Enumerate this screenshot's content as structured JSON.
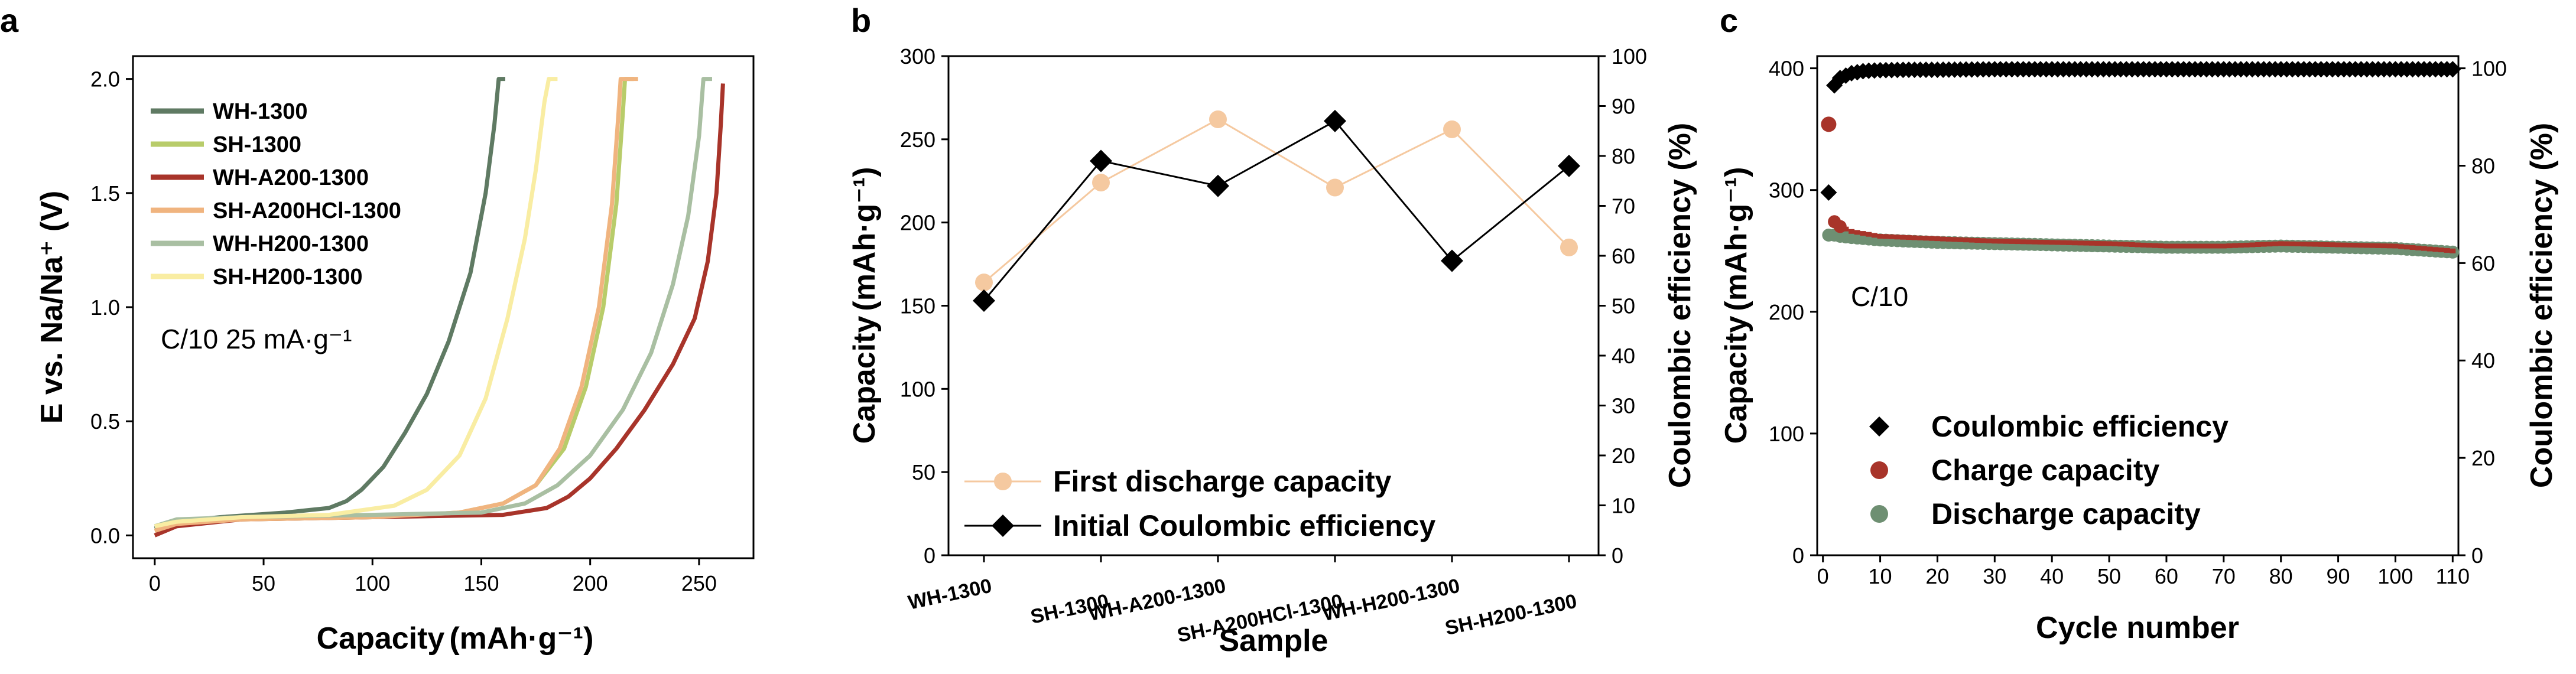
{
  "panel_labels": [
    "a",
    "b",
    "c"
  ],
  "chart_data": [
    {
      "type": "line",
      "title": "",
      "xlabel": "Capacity (mAh·g⁻¹)",
      "xlabel_main": "Capacity",
      "xlabel_unit": "(mAh·g⁻¹)",
      "ylabel": "E vs. Na/Na⁺ (V)",
      "xlim": [
        -10,
        275
      ],
      "ylim": [
        -0.1,
        2.1
      ],
      "xticks": [
        0,
        50,
        100,
        150,
        200,
        250
      ],
      "yticks": [
        "0.0",
        "0.5",
        "1.0",
        "1.5",
        "2.0"
      ],
      "annotation": "C/10 25 mA·g⁻¹",
      "legend_position": "top-left",
      "series": [
        {
          "name": "WH-1300",
          "color": "#5f7a63",
          "x": [
            0,
            10,
            30,
            60,
            80,
            88,
            95,
            105,
            115,
            125,
            135,
            145,
            152,
            156,
            158,
            161
          ],
          "y": [
            0.03,
            0.06,
            0.08,
            0.1,
            0.12,
            0.15,
            0.2,
            0.3,
            0.45,
            0.62,
            0.85,
            1.15,
            1.5,
            1.8,
            2.0,
            2.0
          ]
        },
        {
          "name": "SH-1300",
          "color": "#b8cc6a",
          "x": [
            0,
            10,
            40,
            100,
            140,
            160,
            175,
            188,
            198,
            206,
            212,
            215,
            216,
            220
          ],
          "y": [
            0.02,
            0.05,
            0.07,
            0.08,
            0.1,
            0.14,
            0.22,
            0.38,
            0.65,
            1.0,
            1.45,
            1.85,
            2.0,
            2.0
          ]
        },
        {
          "name": "WH-A200-1300",
          "color": "#a8342a",
          "x": [
            0,
            10,
            40,
            100,
            160,
            180,
            190,
            200,
            212,
            225,
            238,
            248,
            254,
            258,
            260,
            261
          ],
          "y": [
            0.0,
            0.04,
            0.07,
            0.08,
            0.09,
            0.12,
            0.17,
            0.25,
            0.38,
            0.55,
            0.75,
            0.95,
            1.2,
            1.5,
            1.8,
            1.98
          ]
        },
        {
          "name": "SH-A200HCl-1300",
          "color": "#f0b47f",
          "x": [
            0,
            10,
            40,
            100,
            140,
            160,
            175,
            186,
            196,
            204,
            210,
            213,
            214,
            222
          ],
          "y": [
            0.02,
            0.05,
            0.07,
            0.08,
            0.1,
            0.14,
            0.22,
            0.38,
            0.65,
            1.0,
            1.45,
            1.85,
            2.0,
            2.0
          ]
        },
        {
          "name": "WH-H200-1300",
          "color": "#a9bfa2",
          "x": [
            0,
            10,
            40,
            100,
            150,
            170,
            185,
            200,
            215,
            228,
            238,
            245,
            250,
            252,
            256
          ],
          "y": [
            0.04,
            0.07,
            0.08,
            0.09,
            0.1,
            0.14,
            0.22,
            0.35,
            0.55,
            0.8,
            1.1,
            1.4,
            1.75,
            2.0,
            2.0
          ]
        },
        {
          "name": "SH-H200-1300",
          "color": "#f9eda3",
          "x": [
            0,
            10,
            40,
            80,
            110,
            125,
            140,
            152,
            162,
            170,
            175,
            179,
            181,
            185
          ],
          "y": [
            0.04,
            0.06,
            0.08,
            0.09,
            0.13,
            0.2,
            0.35,
            0.6,
            0.95,
            1.3,
            1.6,
            1.9,
            2.0,
            2.0
          ]
        }
      ]
    },
    {
      "type": "line",
      "title": "",
      "xlabel": "Sample",
      "ylabel": "Capacity (mAh·g⁻¹)",
      "ylabel_main": "Capacity",
      "ylabel_unit": "(mAh·g⁻¹)",
      "y2label": "Coulombic efficiency (%)",
      "categories": [
        "WH-1300",
        "SH-1300",
        "WH-A200-1300",
        "SH-A200HCl-1300",
        "WH-H200-1300",
        "SH-H200-1300"
      ],
      "ylim": [
        0,
        300
      ],
      "y2lim": [
        0,
        100
      ],
      "yticks": [
        0,
        50,
        100,
        150,
        200,
        250,
        300
      ],
      "y2ticks": [
        0,
        10,
        20,
        30,
        40,
        50,
        60,
        70,
        80,
        90,
        100
      ],
      "legend_position": "bottom-left",
      "series": [
        {
          "name": "First discharge capacity",
          "axis": "left",
          "marker": "circle",
          "color": "#f5c9a0",
          "values": [
            164,
            224,
            262,
            221,
            256,
            185
          ]
        },
        {
          "name": "Initial Coulombic efficiency",
          "axis": "right",
          "marker": "diamond",
          "color": "#000000",
          "values": [
            51,
            79,
            74,
            87,
            59,
            78
          ]
        }
      ]
    },
    {
      "type": "scatter",
      "title": "",
      "xlabel": "Cycle number",
      "ylabel": "Capacity (mAh·g⁻¹)",
      "ylabel_main": "Capacity",
      "ylabel_unit": "(mAh·g⁻¹)",
      "y2label": "Coulombic efficiency (%)",
      "xlim": [
        -1,
        111
      ],
      "ylim": [
        0,
        410
      ],
      "y2lim": [
        0,
        102.5
      ],
      "xticks": [
        0,
        10,
        20,
        30,
        40,
        50,
        60,
        70,
        80,
        90,
        100,
        110
      ],
      "yticks": [
        0,
        100,
        200,
        300,
        400
      ],
      "y2ticks": [
        0,
        20,
        40,
        60,
        80,
        100
      ],
      "annotation": "C/10",
      "legend_position": "bottom-left",
      "series": [
        {
          "name": "Coulombic efficiency",
          "axis": "right",
          "marker": "diamond",
          "color": "#000000",
          "x": [
            1,
            2,
            3,
            4,
            5,
            6,
            7,
            8,
            10,
            15,
            20,
            30,
            40,
            50,
            60,
            70,
            80,
            90,
            100,
            110
          ],
          "y": [
            74.5,
            96.5,
            98,
            98.5,
            99,
            99.2,
            99.4,
            99.5,
            99.6,
            99.7,
            99.7,
            99.8,
            99.8,
            99.8,
            99.8,
            99.8,
            99.8,
            99.8,
            99.8,
            99.8
          ]
        },
        {
          "name": "Charge capacity",
          "axis": "left",
          "marker": "circle",
          "color": "#a8342a",
          "x": [
            1,
            2,
            3,
            5,
            10,
            20,
            30,
            40,
            50,
            60,
            70,
            80,
            90,
            100,
            110
          ],
          "y": [
            354,
            274,
            270,
            266,
            262,
            260,
            258,
            257,
            256,
            254,
            254,
            256,
            255,
            254,
            250
          ]
        },
        {
          "name": "Discharge capacity",
          "axis": "left",
          "marker": "circle",
          "color": "#6e8f72",
          "x": [
            1,
            2,
            3,
            5,
            10,
            20,
            30,
            40,
            50,
            60,
            70,
            80,
            90,
            100,
            110
          ],
          "y": [
            263,
            263,
            262,
            261,
            259,
            257,
            256,
            255,
            254,
            253,
            253,
            254,
            253,
            252,
            249
          ]
        }
      ]
    }
  ]
}
